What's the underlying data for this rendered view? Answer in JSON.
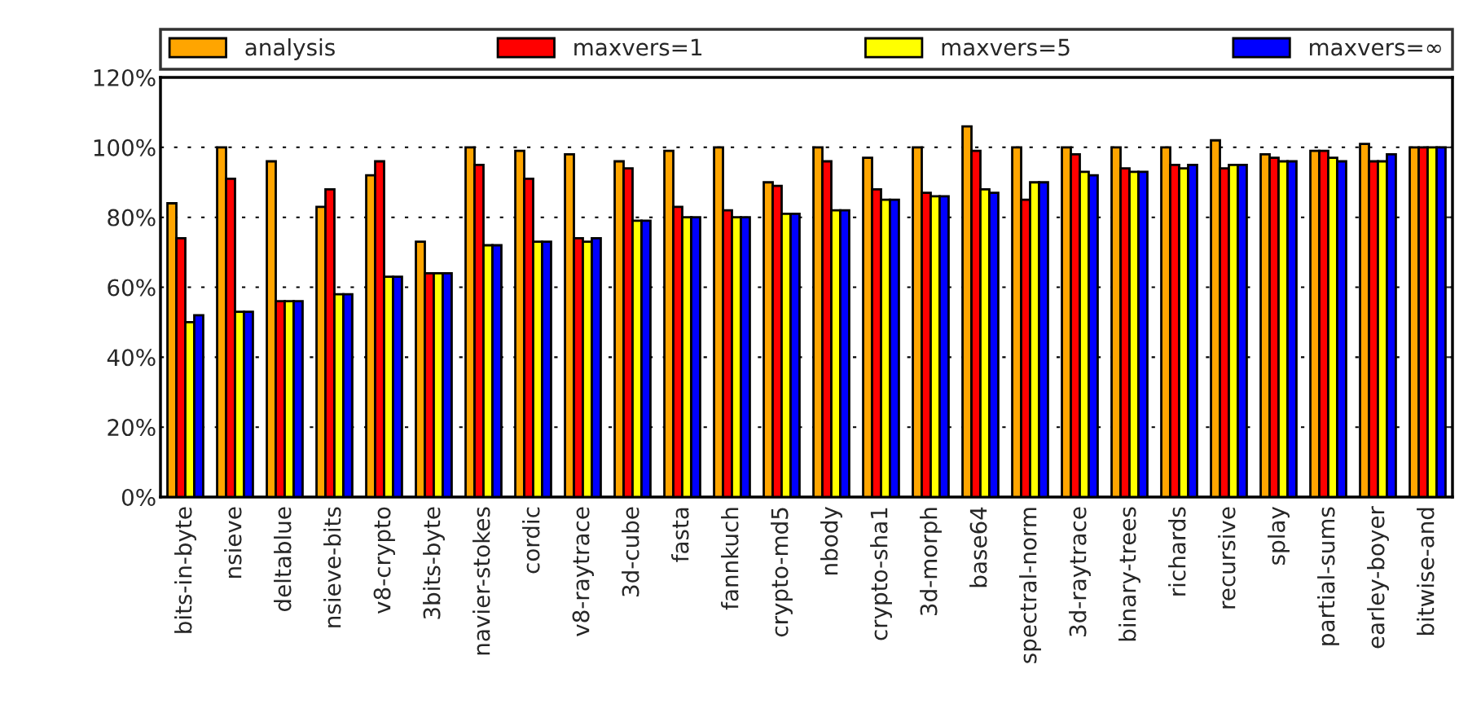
{
  "chart_data": {
    "type": "bar",
    "categories": [
      "bits-in-byte",
      "nsieve",
      "deltablue",
      "nsieve-bits",
      "v8-crypto",
      "3bits-byte",
      "navier-stokes",
      "cordic",
      "v8-raytrace",
      "3d-cube",
      "fasta",
      "fannkuch",
      "crypto-md5",
      "nbody",
      "crypto-sha1",
      "3d-morph",
      "base64",
      "spectral-norm",
      "3d-raytrace",
      "binary-trees",
      "richards",
      "recursive",
      "splay",
      "partial-sums",
      "earley-boyer",
      "bitwise-and"
    ],
    "series": [
      {
        "name": "analysis",
        "color": "#ffa500",
        "values": [
          84,
          100,
          96,
          83,
          92,
          73,
          100,
          99,
          98,
          96,
          99,
          100,
          90,
          100,
          97,
          100,
          106,
          100,
          100,
          100,
          100,
          102,
          98,
          99,
          101,
          100
        ]
      },
      {
        "name": "maxvers=1",
        "color": "#ff0000",
        "values": [
          74,
          91,
          56,
          88,
          96,
          64,
          95,
          91,
          74,
          94,
          83,
          82,
          89,
          96,
          88,
          87,
          99,
          85,
          98,
          94,
          95,
          94,
          97,
          99,
          96,
          100
        ]
      },
      {
        "name": "maxvers=5",
        "color": "#ffff00",
        "values": [
          50,
          53,
          56,
          58,
          63,
          64,
          72,
          73,
          73,
          79,
          80,
          80,
          81,
          82,
          85,
          86,
          88,
          90,
          93,
          93,
          94,
          95,
          96,
          97,
          96,
          100
        ]
      },
      {
        "name": "maxvers=∞",
        "color": "#0000ff",
        "values": [
          52,
          53,
          56,
          58,
          63,
          64,
          72,
          73,
          74,
          79,
          80,
          80,
          81,
          82,
          85,
          86,
          87,
          90,
          92,
          93,
          95,
          95,
          96,
          96,
          98,
          100
        ]
      }
    ],
    "ylim": [
      0,
      120
    ],
    "yticks": [
      {
        "value": 0,
        "label": "0%"
      },
      {
        "value": 20,
        "label": "20%"
      },
      {
        "value": 40,
        "label": "40%"
      },
      {
        "value": 60,
        "label": "60%"
      },
      {
        "value": 80,
        "label": "80%"
      },
      {
        "value": 100,
        "label": "100%"
      },
      {
        "value": 120,
        "label": "120%"
      }
    ],
    "grid": "y",
    "legend": "top"
  }
}
